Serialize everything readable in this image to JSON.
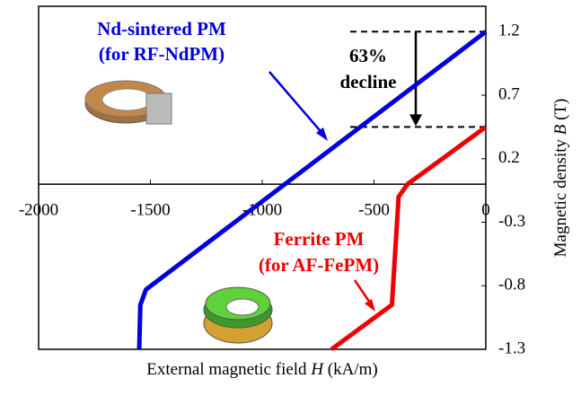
{
  "chart_data": {
    "type": "line",
    "x_label": [
      "External magnetic field ",
      "H",
      " (kA/m)"
    ],
    "y_label": [
      "Magnetic density ",
      "B",
      " (T)"
    ],
    "xlim": [
      -2000,
      0
    ],
    "ylim": [
      -1.3,
      1.4
    ],
    "xticks": [
      -2000,
      -1500,
      -1000,
      -500,
      0
    ],
    "yticks": [
      1.2,
      0.7,
      0.2,
      -0.3,
      -0.8,
      -1.3
    ],
    "series": [
      {
        "name": "Nd-sintered PM",
        "subname": "(for RF-NdPM)",
        "color": "#0000dd",
        "x": [
          0,
          -1520,
          -1545,
          -1550
        ],
        "values": [
          1.2,
          -0.83,
          -0.95,
          -1.3
        ]
      },
      {
        "name": "Ferrite PM",
        "subname": "(for AF-FePM)",
        "color": "#ee0000",
        "x": [
          0,
          -350,
          -390,
          -420,
          -690
        ],
        "values": [
          0.45,
          0.0,
          -0.1,
          -0.95,
          -1.3
        ]
      }
    ],
    "annotations": [
      "63%",
      "decline"
    ]
  }
}
